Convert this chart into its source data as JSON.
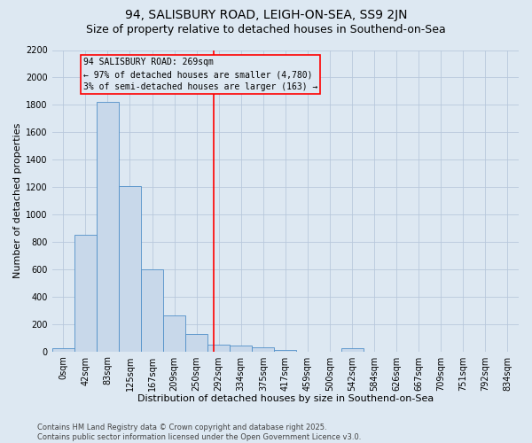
{
  "title": "94, SALISBURY ROAD, LEIGH-ON-SEA, SS9 2JN",
  "subtitle": "Size of property relative to detached houses in Southend-on-Sea",
  "xlabel": "Distribution of detached houses by size in Southend-on-Sea",
  "ylabel": "Number of detached properties",
  "bar_labels": [
    "0sqm",
    "42sqm",
    "83sqm",
    "125sqm",
    "167sqm",
    "209sqm",
    "250sqm",
    "292sqm",
    "334sqm",
    "375sqm",
    "417sqm",
    "459sqm",
    "500sqm",
    "542sqm",
    "584sqm",
    "626sqm",
    "667sqm",
    "709sqm",
    "751sqm",
    "792sqm",
    "834sqm"
  ],
  "bar_values": [
    25,
    850,
    1820,
    1210,
    600,
    260,
    125,
    50,
    40,
    30,
    10,
    0,
    0,
    25,
    0,
    0,
    0,
    0,
    0,
    0,
    0
  ],
  "bar_color": "#c8d8ea",
  "bar_edge_color": "#5090c8",
  "vline_x": 6.78,
  "vline_color": "red",
  "annotation_text": "94 SALISBURY ROAD: 269sqm\n← 97% of detached houses are smaller (4,780)\n3% of semi-detached houses are larger (163) →",
  "annotation_box_edgecolor": "red",
  "ylim_max": 2200,
  "yticks": [
    0,
    200,
    400,
    600,
    800,
    1000,
    1200,
    1400,
    1600,
    1800,
    2000,
    2200
  ],
  "grid_color": "#b8c8dc",
  "bg_color": "#dde8f2",
  "footer": "Contains HM Land Registry data © Crown copyright and database right 2025.\nContains public sector information licensed under the Open Government Licence v3.0.",
  "title_fontsize": 10,
  "subtitle_fontsize": 9,
  "xlabel_fontsize": 8,
  "ylabel_fontsize": 8,
  "tick_fontsize": 7,
  "footer_fontsize": 6,
  "annot_fontsize": 7
}
